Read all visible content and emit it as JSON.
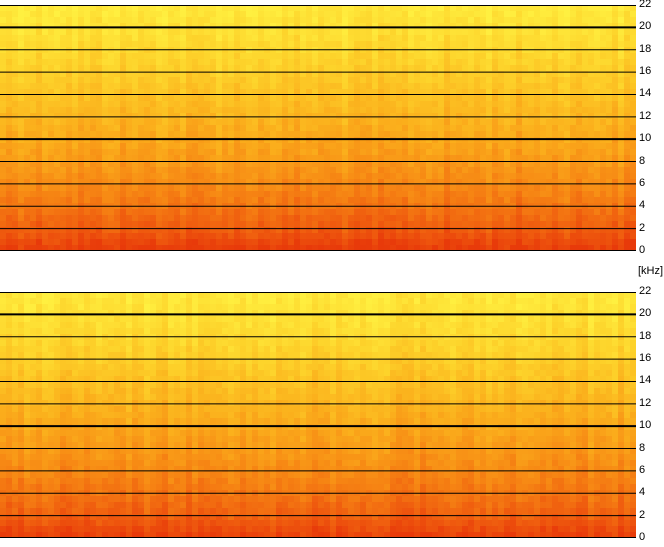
{
  "chart_data": [
    {
      "type": "heatmap",
      "title": "",
      "channel": "top",
      "ylabel": "[kHz]",
      "ylim": [
        0,
        22
      ],
      "yticks": [
        0,
        2,
        4,
        6,
        8,
        10,
        12,
        14,
        16,
        18,
        20,
        22
      ],
      "bold_lines": [
        10,
        20
      ],
      "grid": true,
      "colormap": [
        "#e83a0a",
        "#f0600f",
        "#f78a14",
        "#fbb01c",
        "#fdd22a",
        "#fff040"
      ],
      "energy_profile_by_khz": [
        [
          0,
          0.0
        ],
        [
          2,
          0.18
        ],
        [
          4,
          0.3
        ],
        [
          6,
          0.4
        ],
        [
          8,
          0.48
        ],
        [
          10,
          0.55
        ],
        [
          12,
          0.63
        ],
        [
          14,
          0.7
        ],
        [
          16,
          0.77
        ],
        [
          18,
          0.84
        ],
        [
          20,
          0.9
        ],
        [
          22,
          0.95
        ]
      ]
    },
    {
      "type": "heatmap",
      "title": "",
      "channel": "bottom",
      "ylabel": "[kHz]",
      "ylim": [
        0,
        22
      ],
      "yticks": [
        0,
        2,
        4,
        6,
        8,
        10,
        12,
        14,
        16,
        18,
        20,
        22
      ],
      "bold_lines": [
        10,
        20
      ],
      "grid": true,
      "colormap": [
        "#e83a0a",
        "#f0600f",
        "#f78a14",
        "#fbb01c",
        "#fdd22a",
        "#fff040"
      ],
      "energy_profile_by_khz": [
        [
          0,
          0.02
        ],
        [
          2,
          0.2
        ],
        [
          4,
          0.3
        ],
        [
          6,
          0.4
        ],
        [
          8,
          0.48
        ],
        [
          10,
          0.55
        ],
        [
          12,
          0.63
        ],
        [
          14,
          0.7
        ],
        [
          16,
          0.77
        ],
        [
          18,
          0.84
        ],
        [
          20,
          0.9
        ],
        [
          22,
          0.95
        ]
      ]
    }
  ]
}
